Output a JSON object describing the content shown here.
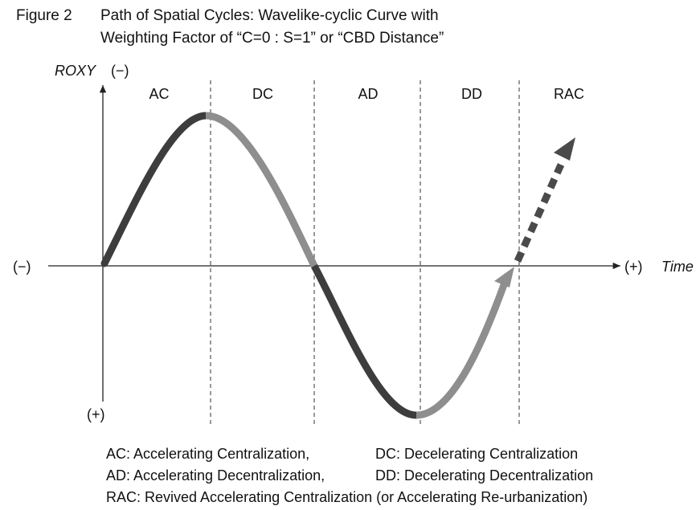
{
  "caption": {
    "figure_number": "Figure 2",
    "title_line1": "Path of Spatial Cycles: Wavelike-cyclic Curve with",
    "title_line2": "Weighting Factor of “C=0 : S=1” or “CBD Distance”"
  },
  "axes": {
    "y_label": "ROXY",
    "y_top_sign": "(−)",
    "y_bottom_sign": "(+)",
    "x_left_sign": "(−)",
    "x_right_sign": "(+)",
    "x_label": "Time"
  },
  "phases": [
    "AC",
    "DC",
    "AD",
    "DD",
    "RAC"
  ],
  "colors": {
    "dark_segment": "#3d3d3d",
    "light_segment": "#8e8e8e",
    "rac_arrow": "#4a4a4a",
    "axis": "#222222"
  },
  "legend": {
    "row1_left": "AC: Accelerating Centralization,",
    "row1_right": "DC: Decelerating Centralization",
    "row2_left": "AD: Accelerating Decentralization,",
    "row2_right": "DD: Decelerating Decentralization",
    "row3": "RAC: Revived Accelerating Centralization (or Accelerating Re-urbanization)"
  }
}
